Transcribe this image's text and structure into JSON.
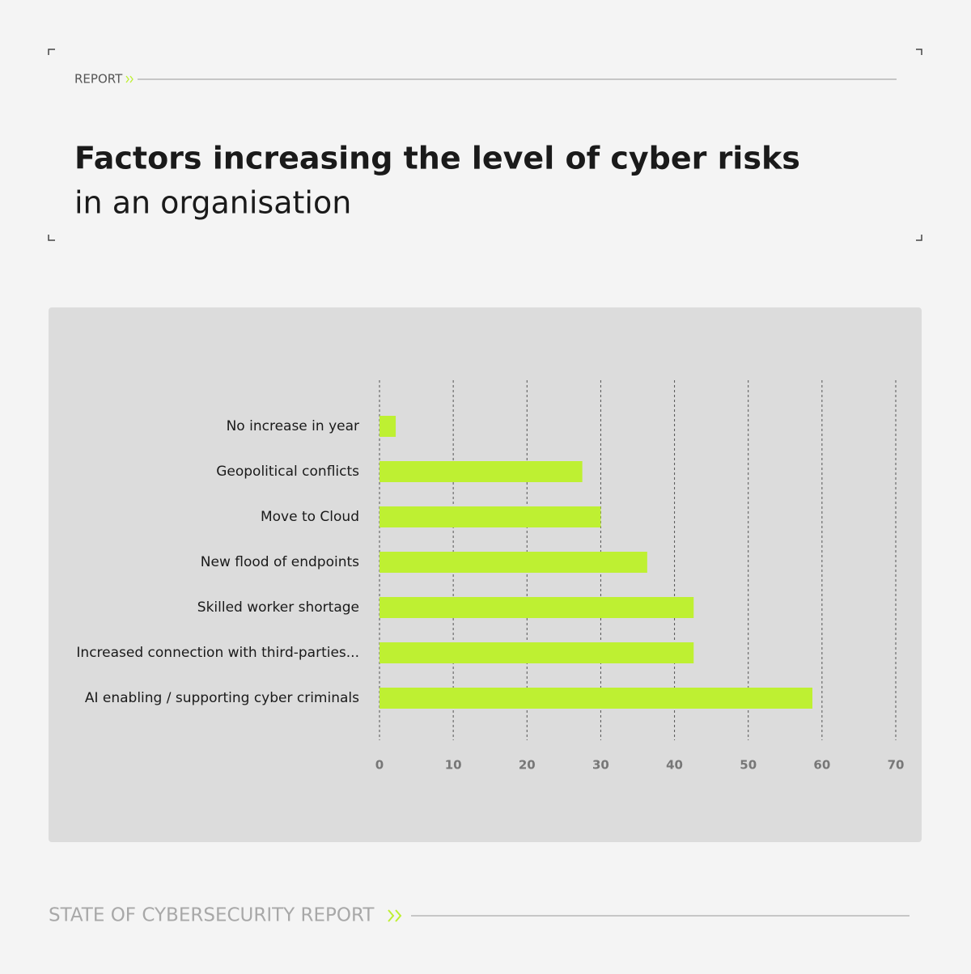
{
  "report_label": "REPORT",
  "footer": "STATE OF CYBERSECURITY REPORT",
  "chart_data": {
    "type": "bar",
    "orientation": "horizontal",
    "title": "Factors increasing the level of cyber risks",
    "subtitle": "in an organisation",
    "categories": [
      "No increase in year",
      "Geopolitical conflicts",
      "Move to Cloud",
      "New flood of endpoints",
      "Skilled worker shortage",
      "Increased connection with third-parties...",
      "AI enabling / supporting cyber criminals"
    ],
    "values": [
      2.2,
      27.5,
      30,
      36.3,
      42.6,
      42.6,
      58.7
    ],
    "color": "#bef032",
    "xlim": [
      0,
      70
    ],
    "xticks": [
      0,
      10,
      20,
      30,
      40,
      50,
      60,
      70
    ],
    "grid": true
  }
}
